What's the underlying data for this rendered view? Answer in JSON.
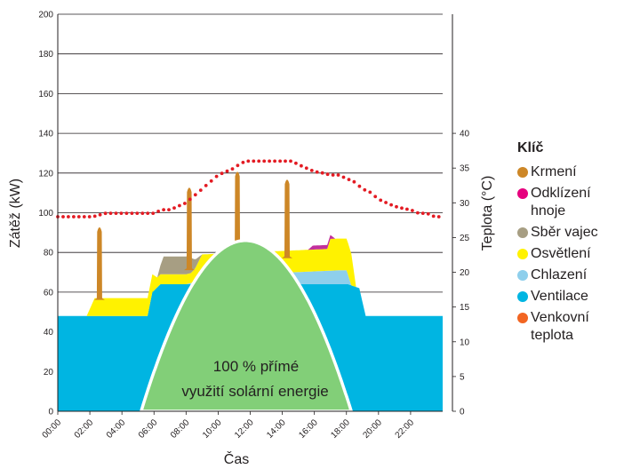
{
  "chart_data": {
    "type": "area",
    "x_label": "Čas",
    "y_label": "Zátěž (kW)",
    "y2_label": "Teplota (°C)",
    "x_ticks": [
      "00:00",
      "02:00",
      "04:00",
      "06:00",
      "08:00",
      "10:00",
      "12:00",
      "14:00",
      "16:00",
      "18:00",
      "20:00",
      "22:00"
    ],
    "y_ticks": [
      0,
      20,
      40,
      60,
      80,
      100,
      120,
      140,
      160,
      180,
      200
    ],
    "y2_ticks": [
      0,
      5,
      10,
      15,
      20,
      25,
      30,
      35,
      40
    ],
    "ylim": [
      0,
      200
    ],
    "y2lim": [
      0,
      40
    ],
    "xlim_hours": [
      0,
      24
    ],
    "grid": true,
    "solar_label_line1": "100 % přímé",
    "solar_label_line2": "využití solární energie",
    "colors": {
      "green": "#82cf78",
      "ventilation": "#00b5e2",
      "cooling": "#8ecfec",
      "lighting": "#fff200",
      "eggs": "#a79e83",
      "manure": "#c2309c",
      "feeding": "#cd8727",
      "temperature": "#e31b23"
    },
    "legend": {
      "title": "Klíč",
      "items": [
        {
          "label": "Krmení",
          "color": "#cd8727"
        },
        {
          "label": "Odklízení hnoje",
          "color": "#e6007e"
        },
        {
          "label": "Sběr vajec",
          "color": "#a79e83"
        },
        {
          "label": "Osvětlení",
          "color": "#fff200"
        },
        {
          "label": "Chlazení",
          "color": "#8ecfec"
        },
        {
          "label": "Ventilace",
          "color": "#00b5e2"
        },
        {
          "label": "Venkovní teplota",
          "color": "#f26522"
        }
      ]
    },
    "series": [
      {
        "name": "Ventilace",
        "x": [
          0,
          5.6,
          5.9,
          6.4,
          17.5,
          18.1,
          18.8,
          19.2,
          24
        ],
        "values": [
          48,
          48,
          60,
          64,
          64,
          64,
          62,
          48,
          48
        ]
      },
      {
        "name": "Chlazení",
        "x": [
          8,
          8.5,
          9,
          17.5,
          18,
          18.3
        ],
        "values": [
          0,
          1,
          4,
          7,
          7,
          0
        ]
      },
      {
        "name": "Osvětlení",
        "x": [
          1.8,
          2.3,
          5.9,
          6.2,
          8.3,
          8.6,
          9,
          16.8,
          17,
          18.3,
          18.6,
          24
        ],
        "values": [
          0,
          9,
          9,
          5,
          5,
          7,
          11,
          11,
          16,
          16,
          0,
          0
        ]
      },
      {
        "name": "Sběr vajec",
        "x": [
          6.2,
          6.6,
          8.2,
          8.6,
          9
        ],
        "values": [
          0,
          9,
          9,
          4,
          0
        ]
      },
      {
        "name": "Odklízení hnoje",
        "x": [
          15.6,
          15.9,
          17,
          17.3
        ],
        "values": [
          0,
          2,
          2,
          0
        ]
      },
      {
        "name": "Krmení",
        "x": [
          2.6,
          8.2,
          11.2,
          14.3
        ],
        "peak_values": [
          94,
          114,
          122,
          118
        ],
        "base_values": [
          57,
          72,
          80,
          78
        ]
      },
      {
        "name": "100 % přímé využití solární energie",
        "x": [
          5.2,
          11.7,
          18.3
        ],
        "values": [
          0,
          86,
          0
        ]
      },
      {
        "name": "Venkovní teplota",
        "axis": "y2",
        "unit": "°C",
        "x": [
          0,
          2.2,
          3,
          4,
          5,
          6,
          6.5,
          7,
          7.5,
          8,
          8.5,
          9,
          9.5,
          10,
          10.5,
          11,
          11.3,
          11.7,
          12,
          13,
          13.6,
          14.2,
          14.6,
          15,
          15.5,
          16,
          16.5,
          17,
          17.5,
          18,
          18.5,
          19,
          19.5,
          20,
          20.5,
          21,
          21.5,
          22,
          22.5,
          23,
          23.5,
          24
        ],
        "values": [
          28,
          28,
          28.5,
          28.5,
          28.5,
          28.5,
          29,
          29,
          29.5,
          30,
          31,
          32,
          33,
          34,
          34.5,
          35,
          35.5,
          36,
          36,
          36,
          36,
          36,
          36,
          35.5,
          35,
          34.5,
          34.3,
          34,
          34,
          33.5,
          33,
          32,
          31.5,
          30.5,
          30,
          29.5,
          29.2,
          29,
          28.5,
          28.5,
          28,
          28
        ]
      }
    ]
  }
}
